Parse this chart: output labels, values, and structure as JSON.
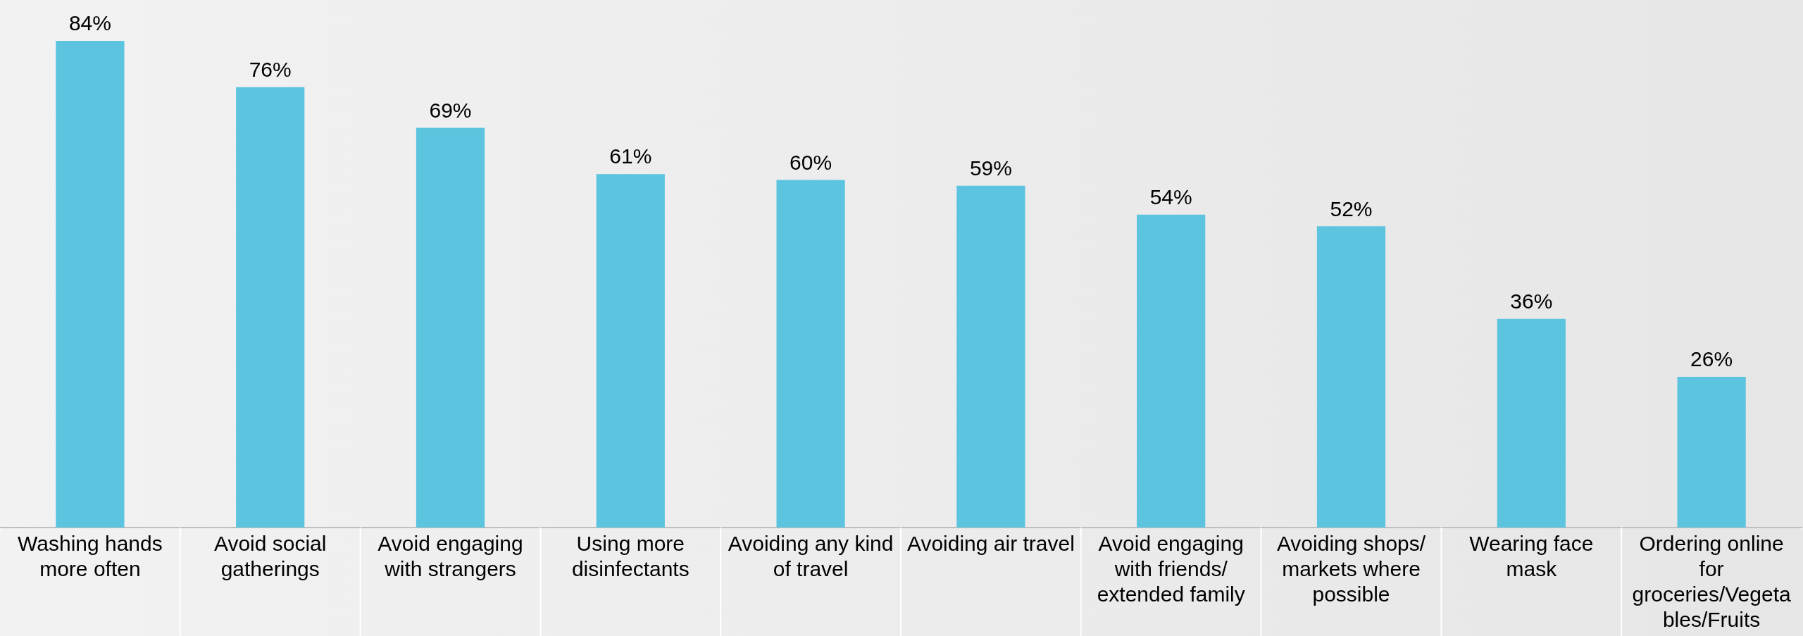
{
  "chart_data": {
    "type": "bar",
    "categories": [
      "Washing hands more often",
      "Avoid social gatherings",
      "Avoid engaging with strangers",
      "Using more disinfectants",
      "Avoiding any kind of travel",
      "Avoiding air travel",
      "Avoid engaging with friends/ extended family",
      "Avoiding shops/ markets where possible",
      "Wearing face mask",
      "Ordering online for groceries/Vegetables/Fruits"
    ],
    "values": [
      84,
      76,
      69,
      61,
      60,
      59,
      54,
      52,
      36,
      26
    ],
    "color": "#5cc4df",
    "value_labels": [
      "84%",
      "76%",
      "69%",
      "61%",
      "60%",
      "59%",
      "54%",
      "52%",
      "36%",
      "26%"
    ],
    "tick_labels": "x",
    "grid": false,
    "legend": false
  }
}
